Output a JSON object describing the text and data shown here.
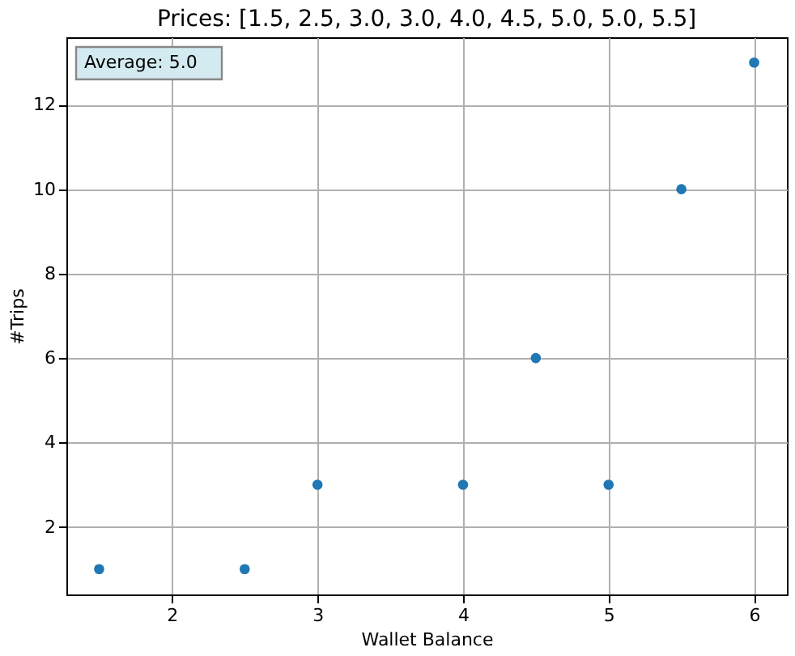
{
  "chart_data": {
    "type": "scatter",
    "title": "Prices: [1.5, 2.5, 3.0, 3.0, 4.0, 4.5, 5.0, 5.0, 5.5]",
    "xlabel": "Wallet Balance",
    "ylabel": "#Trips",
    "x": [
      1.5,
      2.5,
      3,
      4,
      4.5,
      5,
      5.5,
      6
    ],
    "series": [
      {
        "color": "#1f77b4",
        "values": [
          1,
          1,
          3,
          3,
          6,
          3,
          10,
          13
        ]
      }
    ],
    "xlim": [
      1.275,
      6.225
    ],
    "xticks": [
      2,
      3,
      4,
      5,
      6
    ],
    "ylim": [
      0.4,
      13.6
    ],
    "yticks": [
      2,
      4,
      6,
      8,
      10,
      12
    ],
    "grid": true,
    "marker": "circle",
    "annotations": [
      "Average: 5.0"
    ]
  }
}
